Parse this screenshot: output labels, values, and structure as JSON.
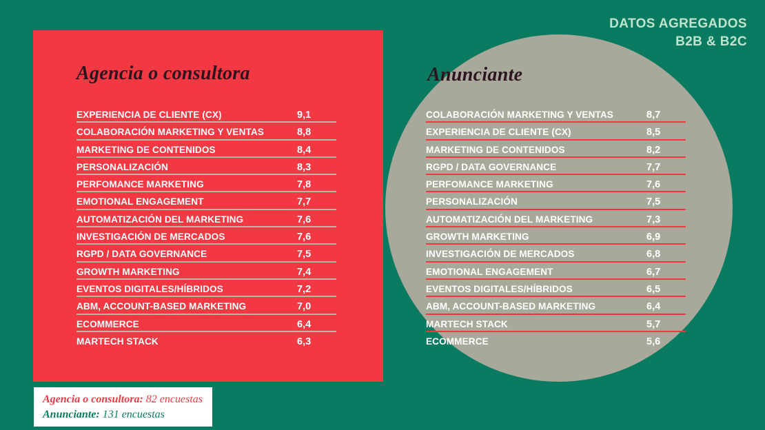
{
  "colors": {
    "background": "#0a7a61",
    "panel_red": "#f23843",
    "circle_gray": "#a9a99b",
    "rule_sage": "#b7bba4",
    "rule_red": "#f6343f",
    "title_dark": "#2b161f",
    "badge_mint": "#bfe3cc",
    "white": "#ffffff"
  },
  "badge": {
    "line1": "DATOS AGREGADOS",
    "line2": "B2B & B2C"
  },
  "left_panel": {
    "title": "Agencia o consultora",
    "rows": [
      {
        "label": "EXPERIENCIA DE CLIENTE (CX)",
        "value": "9,1"
      },
      {
        "label": "COLABORACIÓN MARKETING Y VENTAS",
        "value": "8,8"
      },
      {
        "label": "MARKETING DE CONTENIDOS",
        "value": "8,4"
      },
      {
        "label": "PERSONALIZACIÓN",
        "value": "8,3"
      },
      {
        "label": "PERFOMANCE MARKETING",
        "value": "7,8"
      },
      {
        "label": "EMOTIONAL ENGAGEMENT",
        "value": "7,7"
      },
      {
        "label": "AUTOMATIZACIÓN DEL MARKETING",
        "value": "7,6"
      },
      {
        "label": "INVESTIGACIÓN DE MERCADOS",
        "value": "7,6"
      },
      {
        "label": "RGPD / DATA GOVERNANCE",
        "value": "7,5"
      },
      {
        "label": "GROWTH MARKETING",
        "value": "7,4"
      },
      {
        "label": "EVENTOS DIGITALES/HÍBRIDOS",
        "value": "7,2"
      },
      {
        "label": "ABM, ACCOUNT-BASED MARKETING",
        "value": "7,0"
      },
      {
        "label": "ECOMMERCE",
        "value": "6,4"
      },
      {
        "label": "MARTECH STACK",
        "value": "6,3"
      }
    ]
  },
  "right_panel": {
    "title": "Anunciante",
    "rows": [
      {
        "label": "COLABORACIÓN MARKETING Y VENTAS",
        "value": "8,7"
      },
      {
        "label": "EXPERIENCIA DE CLIENTE (CX)",
        "value": "8,5"
      },
      {
        "label": "MARKETING DE CONTENIDOS",
        "value": "8,2"
      },
      {
        "label": "RGPD / DATA GOVERNANCE",
        "value": "7,7"
      },
      {
        "label": "PERFOMANCE MARKETING",
        "value": "7,6"
      },
      {
        "label": "PERSONALIZACIÓN",
        "value": "7,5"
      },
      {
        "label": "AUTOMATIZACIÓN DEL MARKETING",
        "value": "7,3"
      },
      {
        "label": "GROWTH MARKETING",
        "value": "6,9"
      },
      {
        "label": "INVESTIGACIÓN DE MERCADOS",
        "value": "6,8"
      },
      {
        "label": "EMOTIONAL ENGAGEMENT",
        "value": "6,7"
      },
      {
        "label": "EVENTOS DIGITALES/HÍBRIDOS",
        "value": "6,5"
      },
      {
        "label": "ABM, ACCOUNT-BASED MARKETING",
        "value": "6,4"
      },
      {
        "label": "MARTECH STACK",
        "value": "5,7"
      },
      {
        "label": "ECOMMERCE",
        "value": "5,6"
      }
    ]
  },
  "legend": {
    "line1_name": "Agencia o consultora:",
    "line1_value": "82 encuestas",
    "line2_name": "Anunciante:",
    "line2_value": "131 encuestas"
  },
  "chart_data": [
    {
      "type": "table",
      "title": "Agencia o consultora",
      "categories": [
        "EXPERIENCIA DE CLIENTE (CX)",
        "COLABORACIÓN MARKETING Y VENTAS",
        "MARKETING DE CONTENIDOS",
        "PERSONALIZACIÓN",
        "PERFOMANCE MARKETING",
        "EMOTIONAL ENGAGEMENT",
        "AUTOMATIZACIÓN DEL MARKETING",
        "INVESTIGACIÓN DE MERCADOS",
        "RGPD / DATA GOVERNANCE",
        "GROWTH MARKETING",
        "EVENTOS DIGITALES/HÍBRIDOS",
        "ABM, ACCOUNT-BASED MARKETING",
        "ECOMMERCE",
        "MARTECH STACK"
      ],
      "values": [
        9.1,
        8.8,
        8.4,
        8.3,
        7.8,
        7.7,
        7.6,
        7.6,
        7.5,
        7.4,
        7.2,
        7.0,
        6.4,
        6.3
      ],
      "value_format": "decimal-comma",
      "sample_size": 82
    },
    {
      "type": "table",
      "title": "Anunciante",
      "categories": [
        "COLABORACIÓN MARKETING Y VENTAS",
        "EXPERIENCIA DE CLIENTE (CX)",
        "MARKETING DE CONTENIDOS",
        "RGPD / DATA GOVERNANCE",
        "PERFOMANCE MARKETING",
        "PERSONALIZACIÓN",
        "AUTOMATIZACIÓN DEL MARKETING",
        "GROWTH MARKETING",
        "INVESTIGACIÓN DE MERCADOS",
        "EMOTIONAL ENGAGEMENT",
        "EVENTOS DIGITALES/HÍBRIDOS",
        "ABM, ACCOUNT-BASED MARKETING",
        "MARTECH STACK",
        "ECOMMERCE"
      ],
      "values": [
        8.7,
        8.5,
        8.2,
        7.7,
        7.6,
        7.5,
        7.3,
        6.9,
        6.8,
        6.7,
        6.5,
        6.4,
        5.7,
        5.6
      ],
      "value_format": "decimal-comma",
      "sample_size": 131,
      "annotation": "DATOS AGREGADOS B2B & B2C"
    }
  ]
}
